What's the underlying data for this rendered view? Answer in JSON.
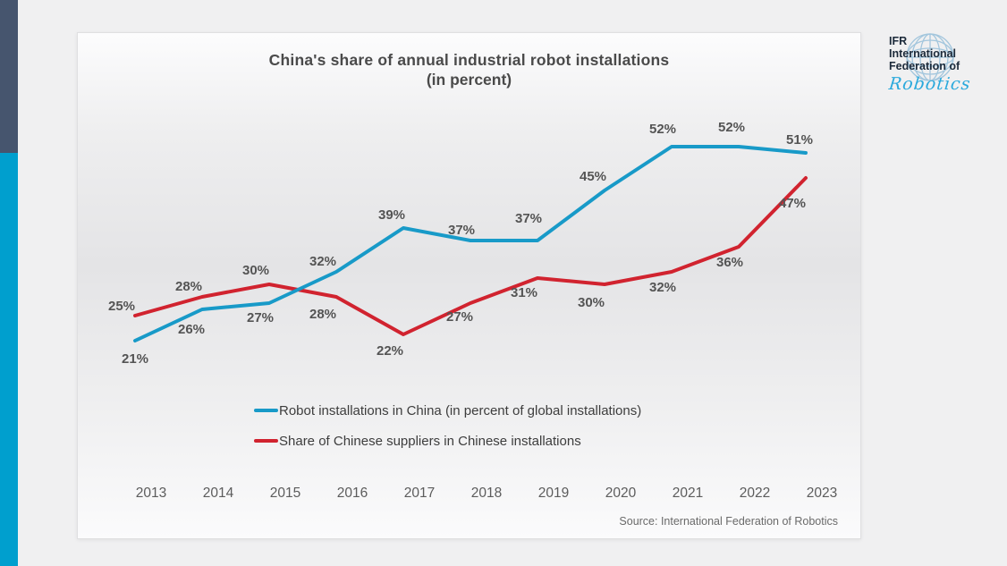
{
  "page": {
    "background": "#f0f0f1"
  },
  "sidebar": {
    "top_color": "#46556e",
    "bottom_color": "#009fce"
  },
  "logo": {
    "line1": "IFR",
    "line2": "International",
    "line3": "Federation of",
    "script": "Robotics",
    "text_color": "#1c2a3a",
    "script_color": "#2aa9dc"
  },
  "chart_data": {
    "type": "line",
    "title": "China's share of annual industrial robot installations",
    "subtitle": "(in percent)",
    "categories": [
      "2013",
      "2014",
      "2015",
      "2016",
      "2017",
      "2018",
      "2019",
      "2020",
      "2021",
      "2022",
      "2023"
    ],
    "series": [
      {
        "name": "Robot installations in China (in percent of global installations)",
        "color": "#189ac8",
        "values": [
          21,
          26,
          27,
          32,
          39,
          37,
          37,
          45,
          52,
          52,
          51
        ]
      },
      {
        "name": "Share of Chinese suppliers in Chinese installations",
        "color": "#d1232f",
        "values": [
          25,
          28,
          30,
          28,
          22,
          27,
          31,
          30,
          32,
          36,
          47
        ]
      }
    ],
    "value_suffix": "%",
    "ylim": [
      15,
      60
    ],
    "grid": false,
    "axes_visible": false,
    "data_labels": true,
    "legend_position": "bottom-left-inside",
    "source": "Source: International Federation of Robotics"
  }
}
